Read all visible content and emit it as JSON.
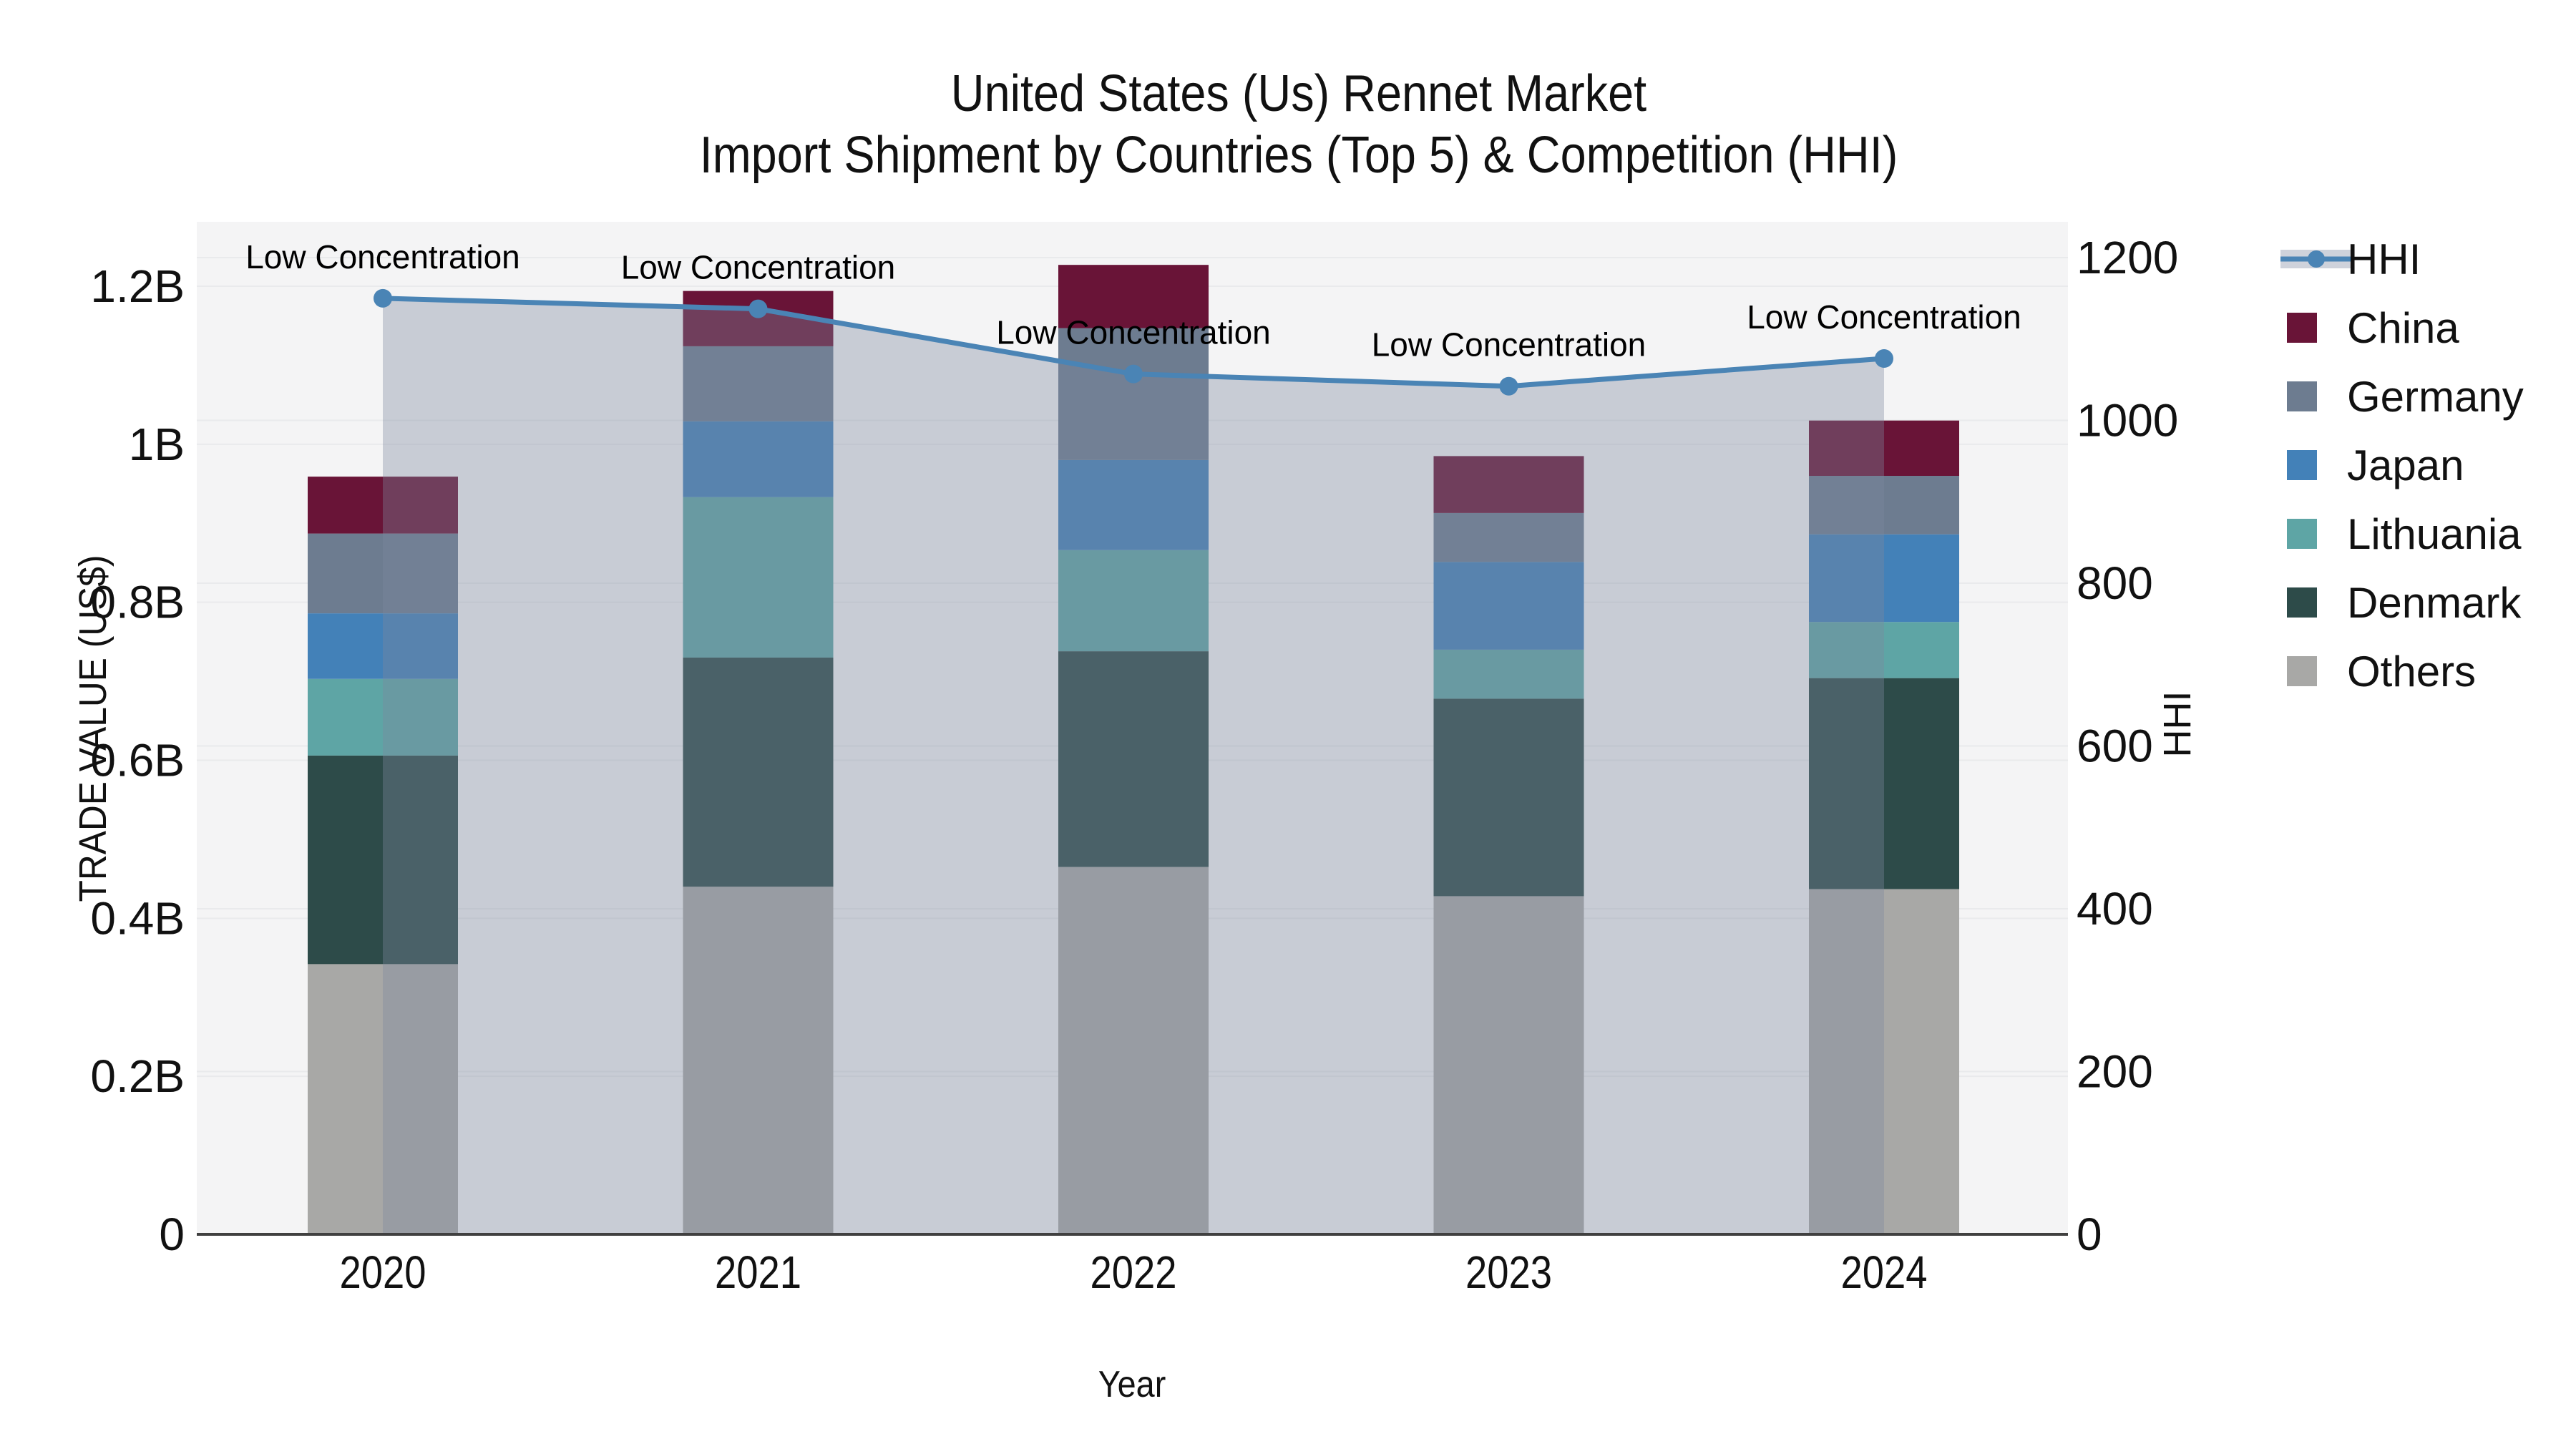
{
  "figure": {
    "title_line1": "United States (Us) Rennet Market",
    "title_line2": "Import Shipment by Countries (Top 5) & Competition (HHI)",
    "xlabel": "Year",
    "ylabel_left": "TRADE VALUE (US$)",
    "ylabel_right": "HHI"
  },
  "chart_data": {
    "type": "bar+line",
    "title": "United States (Us) Rennet Market — Import Shipment by Countries (Top 5) & Competition (HHI)",
    "xlabel": "Year",
    "ylabel_left": "TRADE VALUE (US$)",
    "ylabel_right": "HHI",
    "categories": [
      "2020",
      "2021",
      "2022",
      "2023",
      "2024"
    ],
    "stack_order": [
      "Others",
      "Denmark",
      "Lithuania",
      "Japan",
      "Germany",
      "China"
    ],
    "series": [
      {
        "name": "China",
        "color": "#691437",
        "values": [
          0.072,
          0.07,
          0.08,
          0.072,
          0.07
        ]
      },
      {
        "name": "Germany",
        "color": "#6d7c90",
        "values": [
          0.101,
          0.095,
          0.167,
          0.062,
          0.074
        ]
      },
      {
        "name": "Japan",
        "color": "#4381b8",
        "values": [
          0.083,
          0.096,
          0.114,
          0.111,
          0.111
        ]
      },
      {
        "name": "Lithuania",
        "color": "#5ea5a5",
        "values": [
          0.097,
          0.203,
          0.128,
          0.062,
          0.071
        ]
      },
      {
        "name": "Denmark",
        "color": "#2d4b49",
        "values": [
          0.264,
          0.29,
          0.273,
          0.25,
          0.267
        ]
      },
      {
        "name": "Others",
        "color": "#a8a8a6",
        "values": [
          0.342,
          0.44,
          0.465,
          0.428,
          0.437
        ]
      }
    ],
    "bar_totals_billion": [
      0.959,
      1.194,
      1.227,
      0.985,
      1.03
    ],
    "line_series": {
      "name": "HHI",
      "color": "#4a84b5",
      "area_fill": "rgba(124,135,158,0.37)",
      "legend_band_color": "#ced2db",
      "values": [
        1150,
        1137,
        1057,
        1042,
        1076
      ]
    },
    "annotations": [
      "Low Concentration",
      "Low Concentration",
      "Low Concentration",
      "Low Concentration",
      "Low Concentration"
    ],
    "y_left": {
      "ticks": [
        "0",
        "0.2B",
        "0.4B",
        "0.6B",
        "0.8B",
        "1B",
        "1.2B"
      ],
      "tick_values": [
        0,
        0.2,
        0.4,
        0.6,
        0.8,
        1.0,
        1.2
      ],
      "units": "US$ billions"
    },
    "y_right": {
      "ticks": [
        "0",
        "200",
        "400",
        "600",
        "800",
        "1000",
        "1200"
      ],
      "tick_values": [
        0,
        200,
        400,
        600,
        800,
        1000,
        1200
      ]
    },
    "legend": [
      "HHI",
      "China",
      "Germany",
      "Japan",
      "Lithuania",
      "Denmark",
      "Others"
    ],
    "legend_position": "right",
    "grid": true,
    "plot_background": "#f4f4f5",
    "grid_color": "#e9eaec",
    "axis_line_color": "#404040"
  }
}
